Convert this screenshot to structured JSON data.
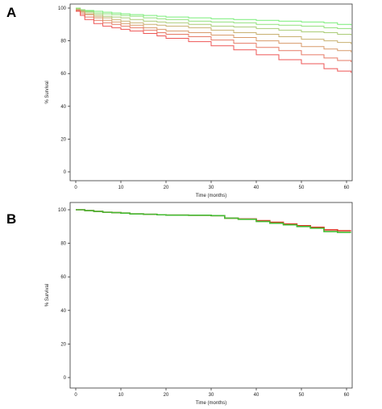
{
  "panels": [
    {
      "letter": "A"
    },
    {
      "letter": "B"
    }
  ],
  "chart_data": [
    {
      "type": "line",
      "title": "",
      "xlabel": "Time (months)",
      "ylabel": "% Survival",
      "xlim": [
        0,
        61
      ],
      "ylim": [
        0,
        100
      ],
      "xticks": [
        0,
        10,
        20,
        30,
        40,
        50,
        60
      ],
      "yticks": [
        0,
        20,
        40,
        60,
        80,
        100
      ],
      "step": true,
      "grid": false,
      "series": [
        {
          "color": "#77ee77",
          "x": [
            0,
            1,
            2,
            4,
            6,
            8,
            10,
            12,
            15,
            18,
            20,
            25,
            30,
            35,
            40,
            45,
            50,
            55,
            58,
            61
          ],
          "y": [
            100,
            99,
            98.5,
            98,
            97.5,
            97,
            96.5,
            96,
            95.5,
            95,
            94.5,
            94,
            93.5,
            93,
            92.5,
            92,
            91.5,
            91,
            90,
            89.5
          ]
        },
        {
          "color": "#8fe07a",
          "x": [
            0,
            1,
            2,
            4,
            6,
            8,
            10,
            12,
            15,
            18,
            20,
            25,
            30,
            35,
            40,
            45,
            50,
            55,
            58,
            61
          ],
          "y": [
            100,
            99,
            98,
            97,
            96.5,
            96,
            95.5,
            95,
            94,
            93.5,
            93,
            92,
            91.5,
            91,
            90,
            89.5,
            89,
            88,
            87.5,
            87
          ]
        },
        {
          "color": "#aacc77",
          "x": [
            0,
            1,
            2,
            4,
            6,
            8,
            10,
            12,
            15,
            18,
            20,
            25,
            30,
            35,
            40,
            45,
            50,
            55,
            58,
            61
          ],
          "y": [
            99.5,
            98.5,
            97.5,
            96,
            95,
            94.5,
            94,
            93,
            92,
            91.5,
            91,
            90,
            89,
            88.5,
            87.5,
            86.5,
            85.5,
            85,
            84,
            83.5
          ]
        },
        {
          "color": "#c8b070",
          "x": [
            0,
            1,
            2,
            4,
            6,
            8,
            10,
            12,
            15,
            18,
            20,
            25,
            30,
            35,
            40,
            45,
            50,
            55,
            58,
            61
          ],
          "y": [
            99,
            98,
            96.5,
            95,
            94,
            93,
            92,
            91,
            90,
            89.5,
            89,
            88,
            86.5,
            85,
            84,
            82.5,
            81,
            80,
            79,
            78
          ]
        },
        {
          "color": "#d89a6a",
          "x": [
            0,
            1,
            2,
            4,
            6,
            8,
            10,
            12,
            15,
            18,
            20,
            25,
            30,
            35,
            40,
            45,
            50,
            55,
            58,
            61
          ],
          "y": [
            99,
            97.5,
            96,
            94,
            92.5,
            91.5,
            90.5,
            89.5,
            88,
            87,
            86,
            85,
            83.5,
            82,
            80,
            78.5,
            76.5,
            75,
            74,
            73
          ]
        },
        {
          "color": "#e67a66",
          "x": [
            0,
            1,
            2,
            4,
            6,
            8,
            10,
            12,
            15,
            18,
            20,
            25,
            30,
            35,
            40,
            45,
            50,
            55,
            58,
            61
          ],
          "y": [
            98.5,
            96.5,
            94.5,
            92.5,
            91,
            90,
            89,
            88,
            86.5,
            85,
            84,
            82.5,
            80.5,
            78.5,
            76,
            74,
            71.5,
            69.5,
            68,
            67
          ]
        },
        {
          "color": "#ee5555",
          "x": [
            0,
            1,
            2,
            4,
            6,
            8,
            10,
            12,
            15,
            18,
            20,
            25,
            30,
            35,
            40,
            45,
            50,
            55,
            58,
            61
          ],
          "y": [
            98,
            95.5,
            93,
            90.5,
            89,
            88,
            87,
            86,
            84.5,
            83,
            81.5,
            79.5,
            77,
            74.5,
            71.5,
            68.5,
            66,
            63,
            61.5,
            60.5
          ]
        }
      ]
    },
    {
      "type": "line",
      "title": "",
      "xlabel": "Time (months)",
      "ylabel": "% Survival",
      "xlim": [
        0,
        61
      ],
      "ylim": [
        0,
        100
      ],
      "xticks": [
        0,
        10,
        20,
        30,
        40,
        50,
        60
      ],
      "yticks": [
        0,
        20,
        40,
        60,
        80,
        100
      ],
      "step": true,
      "grid": false,
      "series": [
        {
          "color": "#dd3322",
          "x": [
            0,
            2,
            4,
            6,
            8,
            10,
            12,
            15,
            18,
            20,
            25,
            30,
            33,
            36,
            40,
            43,
            46,
            49,
            52,
            55,
            58,
            61
          ],
          "y": [
            100,
            99.5,
            99,
            98.5,
            98.3,
            98,
            97.5,
            97.3,
            97,
            96.8,
            96.7,
            96.5,
            95,
            94.5,
            93.5,
            92.5,
            91.5,
            90.5,
            89.5,
            88,
            87.5,
            87.5
          ]
        },
        {
          "color": "#44bb33",
          "x": [
            0,
            2,
            4,
            6,
            8,
            10,
            12,
            15,
            18,
            20,
            25,
            30,
            33,
            36,
            40,
            43,
            46,
            49,
            52,
            55,
            58,
            61
          ],
          "y": [
            100,
            99.5,
            99,
            98.5,
            98.3,
            98,
            97.5,
            97.3,
            97,
            96.8,
            96.7,
            96.5,
            95,
            94.3,
            93,
            92,
            91,
            90,
            89,
            87,
            86.5,
            86.5
          ]
        }
      ]
    }
  ]
}
